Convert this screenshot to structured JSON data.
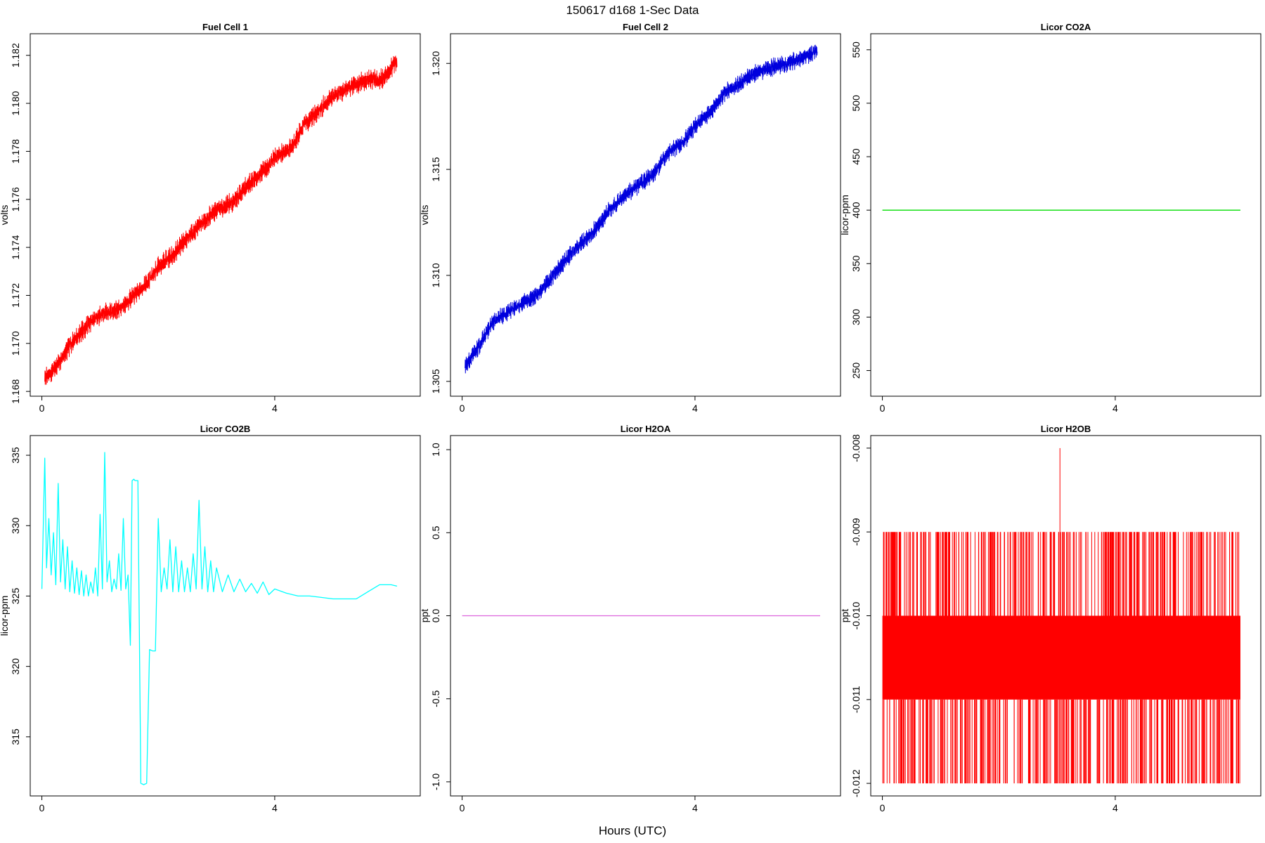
{
  "figure": {
    "title": "150617   d168   1-Sec Data",
    "xlabel": "Hours (UTC)"
  },
  "chart_data": [
    {
      "type": "line",
      "title": "Fuel Cell 1",
      "ylabel": "volts",
      "xlabel": "",
      "color": "#ff0000",
      "xlim": [
        -0.2,
        6.5
      ],
      "ylim": [
        1.1678,
        1.1829
      ],
      "xticks": [
        0,
        4
      ],
      "yticks": [
        1.168,
        1.17,
        1.172,
        1.174,
        1.176,
        1.178,
        1.18,
        1.182
      ],
      "ytick_labels": [
        "1.168",
        "1.170",
        "1.172",
        "1.174",
        "1.176",
        "1.178",
        "1.180",
        "1.182"
      ],
      "noise": 0.0004,
      "x": [
        0.05,
        0.3,
        0.5,
        0.8,
        1.0,
        1.3,
        1.5,
        1.8,
        2.0,
        2.3,
        2.5,
        2.8,
        3.0,
        3.3,
        3.5,
        3.8,
        4.0,
        4.3,
        4.5,
        4.8,
        5.0,
        5.3,
        5.6,
        5.85,
        6.1
      ],
      "y": [
        1.1685,
        1.1692,
        1.17,
        1.1708,
        1.1712,
        1.1714,
        1.1718,
        1.1725,
        1.1732,
        1.1738,
        1.1744,
        1.1751,
        1.1756,
        1.1759,
        1.1765,
        1.1772,
        1.1777,
        1.1782,
        1.1791,
        1.1798,
        1.1803,
        1.1807,
        1.181,
        1.181,
        1.1818
      ]
    },
    {
      "type": "line",
      "title": "Fuel Cell 2",
      "ylabel": "volts",
      "xlabel": "",
      "color": "#0000dd",
      "xlim": [
        -0.2,
        6.5
      ],
      "ylim": [
        1.3043,
        1.3214
      ],
      "xticks": [
        0,
        4
      ],
      "yticks": [
        1.305,
        1.31,
        1.315,
        1.32
      ],
      "ytick_labels": [
        "1.305",
        "1.310",
        "1.315",
        "1.320"
      ],
      "noise": 0.0004,
      "x": [
        0.05,
        0.3,
        0.5,
        0.8,
        1.0,
        1.3,
        1.5,
        1.8,
        2.0,
        2.3,
        2.5,
        2.8,
        3.0,
        3.3,
        3.5,
        3.8,
        4.0,
        4.3,
        4.5,
        4.8,
        5.0,
        5.3,
        5.6,
        5.85,
        6.1
      ],
      "y": [
        1.3057,
        1.3067,
        1.3077,
        1.3083,
        1.3086,
        1.3091,
        1.3098,
        1.3108,
        1.3114,
        1.3122,
        1.313,
        1.3138,
        1.3142,
        1.3148,
        1.3157,
        1.3163,
        1.317,
        1.3178,
        1.3186,
        1.3191,
        1.3195,
        1.3198,
        1.32,
        1.3203,
        1.3206
      ]
    },
    {
      "type": "line",
      "title": "Licor CO2A",
      "ylabel": "licor-ppm",
      "xlabel": "",
      "color": "#00dd00",
      "xlim": [
        -0.2,
        6.5
      ],
      "ylim": [
        226,
        565
      ],
      "xticks": [
        0,
        4
      ],
      "yticks": [
        250,
        300,
        350,
        400,
        450,
        500,
        550
      ],
      "ytick_labels": [
        "250",
        "300",
        "350",
        "400",
        "450",
        "500",
        "550"
      ],
      "x": [
        0.0,
        6.15
      ],
      "y": [
        400,
        400
      ]
    },
    {
      "type": "line",
      "title": "Licor CO2B",
      "ylabel": "licor-ppm",
      "xlabel": "",
      "color": "#00ffff",
      "xlim": [
        -0.2,
        6.5
      ],
      "ylim": [
        310.8,
        336.4
      ],
      "xticks": [
        0,
        4
      ],
      "yticks": [
        315,
        320,
        325,
        330,
        335
      ],
      "ytick_labels": [
        "315",
        "320",
        "325",
        "330",
        "335"
      ],
      "x": [
        0.0,
        0.05,
        0.08,
        0.12,
        0.16,
        0.2,
        0.24,
        0.28,
        0.32,
        0.36,
        0.4,
        0.44,
        0.48,
        0.52,
        0.56,
        0.6,
        0.64,
        0.68,
        0.72,
        0.76,
        0.8,
        0.84,
        0.88,
        0.92,
        0.96,
        1.0,
        1.04,
        1.08,
        1.12,
        1.16,
        1.2,
        1.24,
        1.28,
        1.32,
        1.36,
        1.4,
        1.44,
        1.48,
        1.52,
        1.55,
        1.58,
        1.6,
        1.65,
        1.7,
        1.75,
        1.8,
        1.85,
        1.9,
        1.95,
        2.0,
        2.05,
        2.1,
        2.15,
        2.2,
        2.25,
        2.3,
        2.35,
        2.4,
        2.45,
        2.5,
        2.55,
        2.6,
        2.65,
        2.7,
        2.75,
        2.8,
        2.85,
        2.9,
        2.95,
        3.0,
        3.1,
        3.2,
        3.3,
        3.4,
        3.5,
        3.6,
        3.7,
        3.8,
        3.9,
        4.0,
        4.2,
        4.4,
        4.6,
        4.8,
        5.0,
        5.2,
        5.4,
        5.6,
        5.8,
        6.0,
        6.1
      ],
      "y": [
        325.5,
        334.8,
        327.0,
        330.5,
        326.5,
        329.5,
        325.8,
        333.0,
        326.0,
        329.0,
        325.5,
        328.5,
        325.3,
        327.5,
        325.2,
        327.0,
        325.1,
        326.8,
        325.0,
        326.5,
        325.0,
        326.0,
        325.2,
        327.0,
        325.0,
        330.8,
        325.5,
        335.2,
        326.0,
        327.5,
        325.3,
        326.2,
        325.5,
        328.0,
        325.4,
        330.5,
        325.5,
        326.5,
        321.5,
        333.2,
        333.3,
        333.2,
        333.2,
        311.7,
        311.6,
        311.7,
        321.2,
        321.1,
        321.1,
        330.5,
        325.3,
        327.0,
        325.5,
        329.0,
        325.3,
        328.5,
        325.3,
        327.5,
        325.3,
        327.0,
        325.3,
        328.0,
        325.5,
        331.8,
        325.5,
        328.5,
        325.3,
        327.5,
        325.3,
        327.0,
        325.3,
        326.5,
        325.3,
        326.2,
        325.3,
        325.9,
        325.2,
        326.0,
        325.1,
        325.5,
        325.2,
        325.0,
        325.0,
        324.9,
        324.8,
        324.8,
        324.8,
        325.3,
        325.8,
        325.8,
        325.7
      ]
    },
    {
      "type": "line",
      "title": "Licor H2OA",
      "ylabel": "ppt",
      "xlabel": "",
      "color": "#dd66dd",
      "xlim": [
        -0.2,
        6.5
      ],
      "ylim": [
        -1.085,
        1.085
      ],
      "xticks": [
        0,
        4
      ],
      "yticks": [
        -1.0,
        -0.5,
        0.0,
        0.5,
        1.0
      ],
      "ytick_labels": [
        "-1.0",
        "-0.5",
        "0.0",
        "0.5",
        "1.0"
      ],
      "x": [
        0.0,
        6.15
      ],
      "y": [
        0.0,
        0.0
      ]
    },
    {
      "type": "line",
      "title": "Licor H2OB",
      "ylabel": "ppt",
      "xlabel": "",
      "color": "#ff0000",
      "xlim": [
        -0.2,
        6.5
      ],
      "ylim": [
        -0.01215,
        -0.00785
      ],
      "xticks": [
        0,
        4
      ],
      "yticks": [
        -0.012,
        -0.011,
        -0.01,
        -0.009,
        -0.008
      ],
      "ytick_labels": [
        "-0.012",
        "-0.011",
        "-0.010",
        "-0.009",
        "-0.008"
      ],
      "band": [
        -0.011,
        -0.01
      ],
      "spike_low": -0.012,
      "spike_high": -0.009,
      "max_spike": {
        "x": 3.05,
        "y": -0.008
      },
      "x": [
        0.0,
        6.15
      ]
    }
  ]
}
